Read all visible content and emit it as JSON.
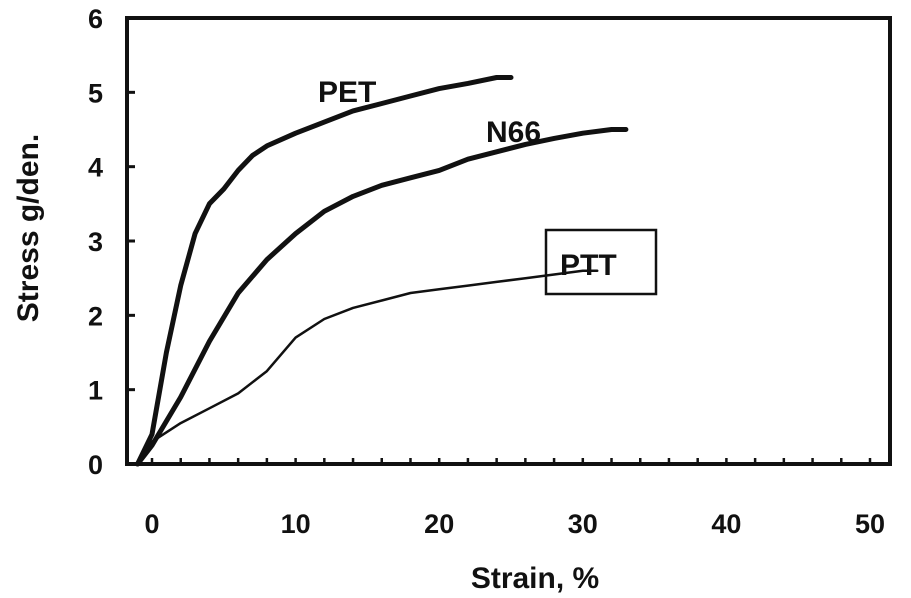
{
  "chart_data": {
    "type": "line",
    "xlabel": "Strain, %",
    "ylabel": "Stress g/den.",
    "xlim": [
      0,
      50
    ],
    "ylim": [
      0,
      6
    ],
    "xticks": [
      "0",
      "10",
      "20",
      "30",
      "40",
      "50"
    ],
    "yticks": [
      "0",
      "1",
      "2",
      "3",
      "4",
      "5",
      "6"
    ],
    "grid": false,
    "legend": "none",
    "series": [
      {
        "name": "PET",
        "color": "#111111",
        "x": [
          -1,
          0,
          1,
          2,
          3,
          4,
          5,
          6,
          7,
          8,
          10,
          12,
          14,
          16,
          18,
          20,
          22,
          24,
          25
        ],
        "y": [
          0,
          0.4,
          1.5,
          2.4,
          3.1,
          3.5,
          3.7,
          3.95,
          4.15,
          4.28,
          4.45,
          4.6,
          4.75,
          4.85,
          4.95,
          5.05,
          5.12,
          5.2,
          5.2
        ]
      },
      {
        "name": "N66",
        "color": "#111111",
        "x": [
          -1,
          0,
          2,
          4,
          6,
          8,
          10,
          12,
          14,
          16,
          18,
          20,
          22,
          24,
          26,
          28,
          30,
          32,
          33
        ],
        "y": [
          0,
          0.25,
          0.9,
          1.65,
          2.3,
          2.75,
          3.1,
          3.4,
          3.6,
          3.75,
          3.85,
          3.95,
          4.1,
          4.2,
          4.3,
          4.38,
          4.45,
          4.5,
          4.5
        ]
      },
      {
        "name": "PTT",
        "color": "#111111",
        "x": [
          -1,
          0,
          2,
          4,
          6,
          8,
          10,
          12,
          14,
          16,
          18,
          20,
          22,
          24,
          26,
          28,
          30,
          31
        ],
        "y": [
          0,
          0.3,
          0.55,
          0.75,
          0.95,
          1.25,
          1.7,
          1.95,
          2.1,
          2.2,
          2.3,
          2.35,
          2.4,
          2.45,
          2.5,
          2.55,
          2.6,
          2.6
        ]
      }
    ]
  }
}
